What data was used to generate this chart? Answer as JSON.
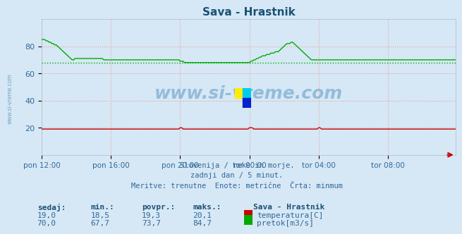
{
  "title": "Sava - Hrastnik",
  "title_color": "#1a5276",
  "bg_color": "#d6e8f5",
  "grid_color": "#e8a0a0",
  "xlim": [
    0,
    287
  ],
  "ylim": [
    0,
    100
  ],
  "yticks": [
    20,
    40,
    60,
    80
  ],
  "xtick_labels": [
    "pon 12:00",
    "pon 16:00",
    "pon 20:00",
    "tor 00:00",
    "tor 04:00",
    "tor 08:00"
  ],
  "xtick_positions": [
    0,
    48,
    96,
    144,
    192,
    240
  ],
  "avg_line_value": 67.7,
  "avg_line_color": "#00aa00",
  "temp_color": "#cc0000",
  "flow_color": "#00aa00",
  "watermark_text": "www.si-vreme.com",
  "watermark_color": "#4488bb",
  "footer_color": "#336699",
  "footer_lines": [
    "Slovenija / reke in morje.",
    "zadnji dan / 5 minut.",
    "Meritve: trenutne  Enote: metrične  Črta: minmum"
  ],
  "table_headers": [
    "sedaj:",
    "min.:",
    "povpr.:",
    "maks.:"
  ],
  "table_row1": [
    "19,0",
    "18,5",
    "19,3",
    "20,1"
  ],
  "table_row2": [
    "70,0",
    "67,7",
    "73,7",
    "84,7"
  ],
  "table_label1": "temperatura[C]",
  "table_label2": "pretok[m3/s]",
  "station_label": "Sava - Hrastnik",
  "flow_data": [
    85,
    85,
    85,
    84,
    84,
    83,
    83,
    82,
    82,
    81,
    81,
    80,
    79,
    78,
    77,
    76,
    75,
    74,
    73,
    72,
    71,
    70,
    70,
    71,
    71,
    71,
    71,
    71,
    71,
    71,
    71,
    71,
    71,
    71,
    71,
    71,
    71,
    71,
    71,
    71,
    71,
    71,
    71,
    70,
    70,
    70,
    70,
    70,
    70,
    70,
    70,
    70,
    70,
    70,
    70,
    70,
    70,
    70,
    70,
    70,
    70,
    70,
    70,
    70,
    70,
    70,
    70,
    70,
    70,
    70,
    70,
    70,
    70,
    70,
    70,
    70,
    70,
    70,
    70,
    70,
    70,
    70,
    70,
    70,
    70,
    70,
    70,
    70,
    70,
    70,
    70,
    70,
    70,
    70,
    70,
    70,
    69,
    69,
    69,
    68,
    68,
    68,
    68,
    68,
    68,
    68,
    68,
    68,
    68,
    68,
    68,
    68,
    68,
    68,
    68,
    68,
    68,
    68,
    68,
    68,
    68,
    68,
    68,
    68,
    68,
    68,
    68,
    68,
    68,
    68,
    68,
    68,
    68,
    68,
    68,
    68,
    68,
    68,
    68,
    68,
    68,
    68,
    68,
    68,
    68,
    69,
    69,
    70,
    70,
    71,
    71,
    72,
    72,
    73,
    73,
    73,
    74,
    74,
    74,
    75,
    75,
    75,
    76,
    76,
    76,
    77,
    78,
    79,
    80,
    81,
    82,
    82,
    82,
    83,
    83,
    82,
    81,
    80,
    79,
    78,
    77,
    76,
    75,
    74,
    73,
    72,
    71,
    70,
    70,
    70,
    70,
    70,
    70,
    70,
    70,
    70,
    70,
    70,
    70,
    70,
    70,
    70,
    70,
    70,
    70,
    70,
    70,
    70,
    70,
    70,
    70,
    70,
    70,
    70,
    70,
    70,
    70,
    70,
    70,
    70,
    70,
    70,
    70,
    70,
    70,
    70,
    70,
    70,
    70,
    70,
    70,
    70,
    70,
    70,
    70,
    70,
    70,
    70,
    70,
    70,
    70,
    70,
    70,
    70,
    70,
    70,
    70,
    70,
    70,
    70,
    70,
    70,
    70,
    70,
    70,
    70,
    70,
    70,
    70,
    70,
    70,
    70,
    70,
    70,
    70,
    70,
    70,
    70,
    70,
    70,
    70,
    70,
    70,
    70,
    70,
    70,
    70,
    70,
    70,
    70,
    70,
    70,
    70,
    70,
    70,
    70,
    70,
    70
  ],
  "temp_base": 19.0,
  "temp_spike_indices": [
    96,
    97,
    144,
    145,
    146,
    192,
    193
  ],
  "temp_spike_value": 20.0
}
